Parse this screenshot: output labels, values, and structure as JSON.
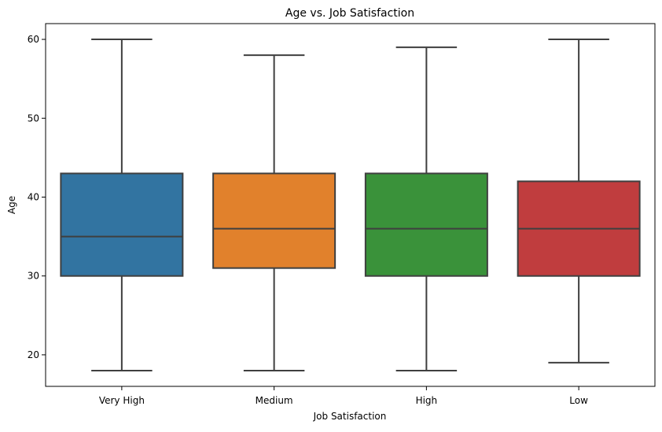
{
  "chart_data": {
    "type": "box",
    "title": "Age vs. Job Satisfaction",
    "xlabel": "Job Satisfaction",
    "ylabel": "Age",
    "ylim": [
      16,
      62
    ],
    "yticks": [
      20,
      30,
      40,
      50,
      60
    ],
    "ytick_labels": [
      "20",
      "30",
      "40",
      "50",
      "60"
    ],
    "grid": false,
    "legend": "none",
    "categories": [
      "Very High",
      "Medium",
      "High",
      "Low"
    ],
    "colors": [
      "#3274a1",
      "#e1812c",
      "#3a923a",
      "#c03d3e"
    ],
    "series": [
      {
        "category": "Very High",
        "whisker_low": 18,
        "q1": 30,
        "median": 35,
        "q3": 43,
        "whisker_high": 60
      },
      {
        "category": "Medium",
        "whisker_low": 18,
        "q1": 31,
        "median": 36,
        "q3": 43,
        "whisker_high": 58
      },
      {
        "category": "High",
        "whisker_low": 18,
        "q1": 30,
        "median": 36,
        "q3": 43,
        "whisker_high": 59
      },
      {
        "category": "Low",
        "whisker_low": 19,
        "q1": 30,
        "median": 36,
        "q3": 42,
        "whisker_high": 60
      }
    ]
  }
}
